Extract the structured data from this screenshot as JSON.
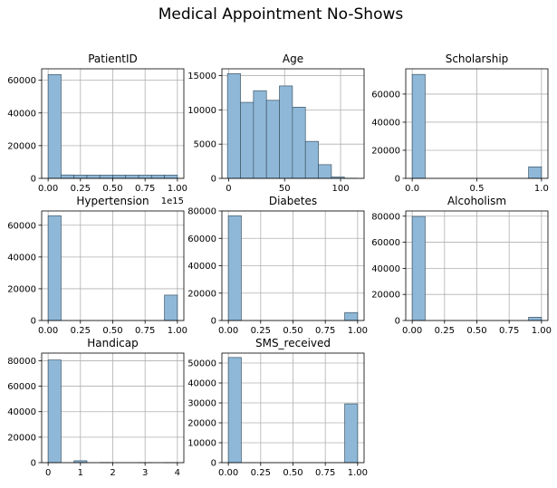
{
  "figure": {
    "title": "Medical Appointment No-Shows"
  },
  "colors": {
    "bar_fill": "#8fb8d8",
    "bar_stroke": "#3d5566",
    "grid": "#b0b0b0",
    "axis": "#000000"
  },
  "chart_data": [
    {
      "type": "bar",
      "title": "PatientID",
      "xlim": [
        -0.05,
        1.05
      ],
      "ylim": [
        0,
        67000
      ],
      "xticks": [
        0,
        0.25,
        0.5,
        0.75,
        1.0
      ],
      "xtick_labels": [
        "0.00",
        "0.25",
        "0.50",
        "0.75",
        "1.00"
      ],
      "yticks": [
        0,
        20000,
        40000,
        60000
      ],
      "ytick_labels": [
        "0",
        "20000",
        "40000",
        "60000"
      ],
      "offset_label": "1e15",
      "bins": [
        [
          0,
          0.1
        ],
        [
          0.1,
          0.2
        ],
        [
          0.2,
          0.3
        ],
        [
          0.3,
          0.4
        ],
        [
          0.4,
          0.5
        ],
        [
          0.5,
          0.6
        ],
        [
          0.6,
          0.7
        ],
        [
          0.7,
          0.8
        ],
        [
          0.8,
          0.9
        ],
        [
          0.9,
          1.0
        ]
      ],
      "values": [
        63500,
        2100,
        2000,
        2000,
        2000,
        2000,
        2000,
        2000,
        2000,
        2000
      ]
    },
    {
      "type": "bar",
      "title": "Age",
      "xlim": [
        -6,
        121
      ],
      "ylim": [
        0,
        16000
      ],
      "xticks": [
        0,
        50,
        100
      ],
      "xtick_labels": [
        "0",
        "50",
        "100"
      ],
      "yticks": [
        0,
        5000,
        10000,
        15000
      ],
      "ytick_labels": [
        "0",
        "5000",
        "10000",
        "15000"
      ],
      "bins": [
        [
          -1,
          10.6
        ],
        [
          10.6,
          22.2
        ],
        [
          22.2,
          33.8
        ],
        [
          33.8,
          45.4
        ],
        [
          45.4,
          57.0
        ],
        [
          57.0,
          68.6
        ],
        [
          68.6,
          80.2
        ],
        [
          80.2,
          91.8
        ],
        [
          91.8,
          103.4
        ],
        [
          103.4,
          115.0
        ]
      ],
      "values": [
        15300,
        11100,
        12800,
        11400,
        13500,
        10400,
        5400,
        2000,
        200,
        20
      ]
    },
    {
      "type": "bar",
      "title": "Scholarship",
      "xlim": [
        -0.05,
        1.05
      ],
      "ylim": [
        0,
        78000
      ],
      "xticks": [
        0,
        0.5,
        1.0
      ],
      "xtick_labels": [
        "0.0",
        "0.5",
        "1.0"
      ],
      "yticks": [
        0,
        20000,
        40000,
        60000
      ],
      "ytick_labels": [
        "0",
        "20000",
        "40000",
        "60000"
      ],
      "bins": [
        [
          0,
          0.1
        ],
        [
          0.9,
          1.0
        ]
      ],
      "values": [
        74000,
        8200
      ]
    },
    {
      "type": "bar",
      "title": "Hypertension",
      "xlim": [
        -0.05,
        1.05
      ],
      "ylim": [
        0,
        69000
      ],
      "xticks": [
        0,
        0.25,
        0.5,
        0.75,
        1.0
      ],
      "xtick_labels": [
        "0.00",
        "0.25",
        "0.50",
        "0.75",
        "1.00"
      ],
      "yticks": [
        0,
        20000,
        40000,
        60000
      ],
      "ytick_labels": [
        "0",
        "20000",
        "40000",
        "60000"
      ],
      "bins": [
        [
          0,
          0.1
        ],
        [
          0.9,
          1.0
        ]
      ],
      "values": [
        66000,
        16000
      ]
    },
    {
      "type": "bar",
      "title": "Diabetes",
      "xlim": [
        -0.05,
        1.05
      ],
      "ylim": [
        0,
        80000
      ],
      "xticks": [
        0,
        0.25,
        0.5,
        0.75,
        1.0
      ],
      "xtick_labels": [
        "0.00",
        "0.25",
        "0.50",
        "0.75",
        "1.00"
      ],
      "yticks": [
        0,
        20000,
        40000,
        60000,
        80000
      ],
      "ytick_labels": [
        "0",
        "20000",
        "40000",
        "60000",
        "80000"
      ],
      "bins": [
        [
          0,
          0.1
        ],
        [
          0.9,
          1.0
        ]
      ],
      "values": [
        76500,
        5800
      ]
    },
    {
      "type": "bar",
      "title": "Alcoholism",
      "xlim": [
        -0.05,
        1.05
      ],
      "ylim": [
        0,
        84000
      ],
      "xticks": [
        0,
        0.25,
        0.5,
        0.75,
        1.0
      ],
      "xtick_labels": [
        "0.00",
        "0.25",
        "0.50",
        "0.75",
        "1.00"
      ],
      "yticks": [
        0,
        20000,
        40000,
        60000,
        80000
      ],
      "ytick_labels": [
        "0",
        "20000",
        "40000",
        "60000",
        "80000"
      ],
      "bins": [
        [
          0,
          0.1
        ],
        [
          0.9,
          1.0
        ]
      ],
      "values": [
        79800,
        2500
      ]
    },
    {
      "type": "bar",
      "title": "Handicap",
      "xlim": [
        -0.2,
        4.2
      ],
      "ylim": [
        0,
        86000
      ],
      "xticks": [
        0,
        1,
        2,
        3,
        4
      ],
      "xtick_labels": [
        "0",
        "1",
        "2",
        "3",
        "4"
      ],
      "yticks": [
        0,
        20000,
        40000,
        60000,
        80000
      ],
      "ytick_labels": [
        "0",
        "20000",
        "40000",
        "60000",
        "80000"
      ],
      "bins": [
        [
          0,
          0.4
        ],
        [
          0.8,
          1.2
        ],
        [
          1.6,
          2.0
        ],
        [
          2.8,
          3.2
        ],
        [
          3.6,
          4.0
        ]
      ],
      "values": [
        80600,
        1500,
        130,
        10,
        3
      ]
    },
    {
      "type": "bar",
      "title": "SMS_received",
      "xlim": [
        -0.05,
        1.05
      ],
      "ylim": [
        0,
        55000
      ],
      "xticks": [
        0,
        0.25,
        0.5,
        0.75,
        1.0
      ],
      "xtick_labels": [
        "0.00",
        "0.25",
        "0.50",
        "0.75",
        "1.00"
      ],
      "yticks": [
        0,
        10000,
        20000,
        30000,
        40000,
        50000
      ],
      "ytick_labels": [
        "0",
        "10000",
        "20000",
        "30000",
        "40000",
        "50000"
      ],
      "bins": [
        [
          0,
          0.1
        ],
        [
          0.9,
          1.0
        ]
      ],
      "values": [
        52800,
        29500
      ]
    }
  ]
}
